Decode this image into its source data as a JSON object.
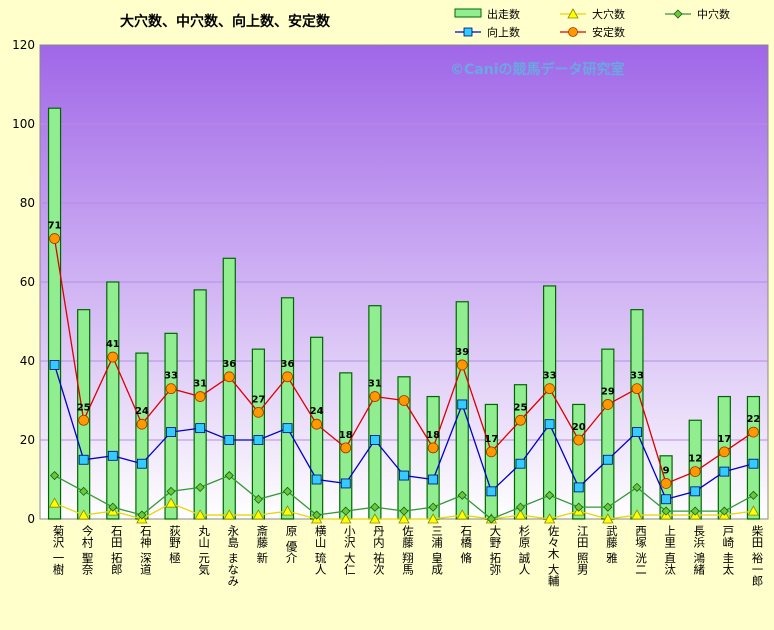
{
  "chart_data": {
    "type": "bar",
    "title": "大穴数、中穴数、向上数、安定数",
    "watermark": "©Caniの競馬データ研究室",
    "ylim": [
      0,
      120
    ],
    "yticks": [
      0,
      20,
      40,
      60,
      80,
      100,
      120
    ],
    "categories": [
      "菊沢 一樹",
      "今村 聖奈",
      "石田 拓郎",
      "石神 深道",
      "荻野 極",
      "丸山 元気",
      "永島 まなみ",
      "斎藤 新",
      "原 優介",
      "横山 琉人",
      "小沢 大仁",
      "丹内 祐次",
      "佐藤 翔馬",
      "三浦 皇成",
      "石橋 脩",
      "大野 拓弥",
      "杉原 誠人",
      "佐々木 大輔",
      "江田 照男",
      "武藤 雅",
      "西塚 洸二",
      "上里 直汰",
      "長浜 鴻緒",
      "戸崎 圭太",
      "柴田 裕一郎"
    ],
    "series": [
      {
        "name": "出走数",
        "kind": "bar",
        "color": "#90ee90",
        "values": [
          104,
          53,
          60,
          42,
          47,
          58,
          66,
          43,
          56,
          46,
          37,
          54,
          36,
          31,
          55,
          29,
          34,
          59,
          29,
          43,
          53,
          16,
          25,
          31,
          31
        ]
      },
      {
        "name": "大穴数",
        "kind": "line",
        "color": "#ffff00",
        "values": [
          4,
          1,
          2,
          0,
          4,
          1,
          1,
          1,
          2,
          0,
          0,
          0,
          0,
          0,
          1,
          0,
          1,
          0,
          2,
          0,
          1,
          1,
          1,
          1,
          2
        ]
      },
      {
        "name": "中穴数",
        "kind": "line",
        "color": "#339933",
        "values": [
          11,
          7,
          3,
          1,
          7,
          8,
          11,
          5,
          7,
          1,
          2,
          3,
          2,
          3,
          6,
          0,
          3,
          6,
          3,
          3,
          8,
          2,
          2,
          2,
          6
        ]
      },
      {
        "name": "向上数",
        "kind": "line",
        "color": "#0000cc",
        "values": [
          39,
          15,
          16,
          14,
          22,
          23,
          20,
          20,
          23,
          10,
          9,
          20,
          11,
          10,
          29,
          7,
          14,
          24,
          8,
          15,
          22,
          5,
          7,
          12,
          14
        ]
      },
      {
        "name": "安定数",
        "kind": "line",
        "color": "#dd0000",
        "values": [
          71,
          25,
          41,
          24,
          33,
          31,
          36,
          27,
          36,
          24,
          18,
          31,
          30,
          18,
          39,
          17,
          25,
          33,
          20,
          29,
          33,
          9,
          12,
          17,
          22
        ]
      }
    ],
    "data_labels": [
      "71",
      "25",
      "41",
      "24",
      "33",
      "31",
      "36",
      "27",
      "36",
      "24",
      "18",
      "31",
      "",
      "18",
      "39",
      "17",
      "25",
      "33",
      "20",
      "29",
      "33",
      "9",
      "12",
      "17",
      "22"
    ],
    "legend": {
      "position": "top-right",
      "entries": [
        "出走数",
        "大穴数",
        "中穴数",
        "向上数",
        "安定数"
      ]
    }
  }
}
